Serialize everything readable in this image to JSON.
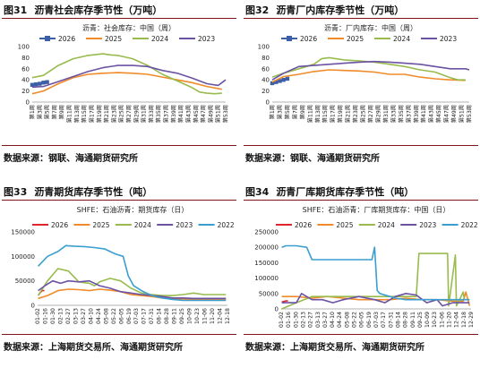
{
  "panels": [
    {
      "id": "p1",
      "figure_no": "图31",
      "title": "沥青社会库存季节性（万吨）",
      "source": "数据来源：钢联、海通期货研究所",
      "chart_data": {
        "type": "line",
        "subtitle": "沥青：社会库存：中国（周）",
        "xlabel": "",
        "ylabel": "",
        "ylim": [
          0,
          100
        ],
        "yticks": [
          0,
          20,
          40,
          60,
          80,
          100
        ],
        "ytick_labels": [
          "0",
          "20",
          "40",
          "60",
          "80",
          "100"
        ],
        "x_categories": [
          "第1周",
          "第5周",
          "第9周",
          "第13周",
          "第17周",
          "第21周",
          "第25周",
          "第29周",
          "第33周",
          "第37周",
          "第41周",
          "第45周",
          "第49周",
          "第53周"
        ],
        "x_tick_labels": [
          "第1周",
          "第3周",
          "第5周",
          "第7周",
          "第9周",
          "第11周",
          "第13周",
          "第15周",
          "第17周",
          "第19周",
          "第21周",
          "第23周",
          "第25周",
          "第27周",
          "第29周",
          "第31周",
          "第33周",
          "第35周",
          "第37周",
          "第39周",
          "第41周",
          "第43周",
          "第45周",
          "第47周",
          "第49周",
          "第51周",
          "第53周"
        ],
        "xlim": [
          1,
          53
        ],
        "legend_position": "top",
        "series": [
          {
            "name": "2026",
            "color": "#3d5fa6",
            "marker": true,
            "x": [
              1,
              2,
              3,
              4,
              5
            ],
            "y": [
              31,
              32,
              33,
              35,
              36
            ]
          },
          {
            "name": "2025",
            "color": "#f08b2a",
            "x": [
              1,
              4,
              8,
              12,
              16,
              20,
              24,
              28,
              32,
              36,
              40,
              44,
              48,
              52
            ],
            "y": [
              15,
              20,
              33,
              44,
              50,
              52,
              53,
              52,
              50,
              45,
              40,
              35,
              28,
              23
            ]
          },
          {
            "name": "2024",
            "color": "#99bb4e",
            "x": [
              1,
              4,
              8,
              12,
              16,
              20,
              22,
              24,
              28,
              32,
              36,
              40,
              44,
              46,
              48,
              50,
              52
            ],
            "y": [
              44,
              48,
              66,
              78,
              84,
              87,
              85,
              84,
              78,
              66,
              50,
              38,
              26,
              18,
              16,
              15,
              16
            ]
          },
          {
            "name": "2023",
            "color": "#6b52a3",
            "x": [
              1,
              4,
              8,
              12,
              16,
              20,
              24,
              28,
              32,
              36,
              40,
              44,
              48,
              51,
              53
            ],
            "y": [
              27,
              28,
              37,
              46,
              55,
              62,
              66,
              66,
              64,
              57,
              52,
              43,
              33,
              30,
              40
            ]
          }
        ]
      }
    },
    {
      "id": "p2",
      "figure_no": "图32",
      "title": "沥青厂内库存季节性（万吨）",
      "source": "数据来源：钢联、海通期货研究所",
      "chart_data": {
        "type": "line",
        "subtitle": "沥青：厂内库存：中国（周）",
        "xlabel": "",
        "ylabel": "",
        "ylim": [
          0,
          100
        ],
        "yticks": [
          0,
          20,
          40,
          60,
          80,
          100
        ],
        "ytick_labels": [
          "0",
          "20",
          "40",
          "60",
          "80",
          "100"
        ],
        "x_tick_labels": [
          "第1周",
          "第3周",
          "第5周",
          "第7周",
          "第9周",
          "第11周",
          "第13周",
          "第15周",
          "第17周",
          "第19周",
          "第21周",
          "第23周",
          "第25周",
          "第27周",
          "第29周",
          "第31周",
          "第33周",
          "第35周",
          "第37周",
          "第39周",
          "第41周",
          "第43周",
          "第45周",
          "第47周",
          "第49周",
          "第51周",
          "第53周"
        ],
        "xlim": [
          1,
          53
        ],
        "legend_position": "top",
        "series": [
          {
            "name": "2026",
            "color": "#3d5fa6",
            "marker": true,
            "x": [
              1,
              2,
              3,
              4,
              5
            ],
            "y": [
              34,
              36,
              38,
              40,
              42
            ]
          },
          {
            "name": "2025",
            "color": "#f08b2a",
            "x": [
              1,
              4,
              8,
              12,
              16,
              20,
              24,
              28,
              32,
              36,
              40,
              44,
              48,
              52
            ],
            "y": [
              36,
              46,
              50,
              55,
              58,
              57,
              56,
              54,
              50,
              50,
              45,
              42,
              40,
              39
            ]
          },
          {
            "name": "2024",
            "color": "#99bb4e",
            "x": [
              1,
              4,
              8,
              12,
              14,
              16,
              20,
              24,
              28,
              32,
              36,
              40,
              44,
              48,
              50,
              52
            ],
            "y": [
              45,
              52,
              60,
              68,
              78,
              80,
              76,
              74,
              72,
              68,
              64,
              58,
              54,
              44,
              40,
              40
            ]
          },
          {
            "name": "2023",
            "color": "#6b52a3",
            "x": [
              1,
              4,
              8,
              12,
              16,
              20,
              24,
              28,
              32,
              36,
              40,
              44,
              48,
              52,
              53
            ],
            "y": [
              40,
              52,
              64,
              66,
              68,
              70,
              72,
              73,
              72,
              70,
              68,
              64,
              60,
              60,
              58
            ]
          }
        ]
      }
    },
    {
      "id": "p3",
      "figure_no": "图33",
      "title": "沥青期货库存季节性（吨）",
      "source": "数据来源：上海期货交易所、海通期货研究所",
      "chart_data": {
        "type": "line",
        "subtitle": "SHFE：石油沥青：期货库存（日）",
        "xlabel": "",
        "ylabel": "",
        "ylim": [
          0,
          150000
        ],
        "yticks": [
          0,
          50000,
          100000,
          150000
        ],
        "ytick_labels": [
          "0",
          "50000",
          "100000",
          "150000"
        ],
        "x_tick_labels": [
          "01-02",
          "01-16",
          "01-30",
          "02-13",
          "02-27",
          "03-13",
          "03-27",
          "04-10",
          "04-24",
          "05-08",
          "05-22",
          "06-05",
          "06-19",
          "07-03",
          "07-17",
          "07-31",
          "08-14",
          "08-28",
          "09-11",
          "09-25",
          "10-09",
          "10-23",
          "11-06",
          "11-20",
          "12-04",
          "12-18"
        ],
        "xlim": [
          1,
          365
        ],
        "legend_position": "top",
        "series": [
          {
            "name": "2026",
            "color": "#e0262a",
            "x": [
              2,
              6,
              10,
              14
            ],
            "y": [
              20000,
              26000,
              30000,
              30000
            ]
          },
          {
            "name": "2025",
            "color": "#f08b2a",
            "x": [
              2,
              20,
              40,
              60,
              80,
              100,
              120,
              140,
              160,
              180,
              200,
              220,
              240,
              260,
              280,
              300,
              320,
              340,
              362
            ],
            "y": [
              14000,
              20000,
              30000,
              33000,
              32000,
              30000,
              33000,
              31000,
              28000,
              22000,
              20000,
              18000,
              15000,
              14000,
              13000,
              12000,
              12000,
              12000,
              12000
            ]
          },
          {
            "name": "2024",
            "color": "#99bb4e",
            "x": [
              2,
              20,
              40,
              60,
              80,
              100,
              110,
              120,
              140,
              160,
              180,
              200,
              220,
              240,
              260,
              280,
              300,
              320,
              340,
              362
            ],
            "y": [
              20000,
              50000,
              75000,
              70000,
              48000,
              45000,
              40000,
              48000,
              55000,
              50000,
              35000,
              25000,
              22000,
              20000,
              20000,
              22000,
              25000,
              22000,
              22000,
              22000
            ]
          },
          {
            "name": "2023",
            "color": "#6b52a3",
            "x": [
              2,
              15,
              30,
              45,
              60,
              80,
              100,
              120,
              140,
              160,
              180,
              200,
              220,
              240,
              260,
              280,
              300,
              320,
              340,
              362
            ],
            "y": [
              30000,
              40000,
              50000,
              45000,
              50000,
              48000,
              50000,
              40000,
              35000,
              28000,
              25000,
              22000,
              20000,
              18000,
              15000,
              15000,
              14000,
              14000,
              14000,
              14000
            ]
          },
          {
            "name": "2022",
            "color": "#3a9fd0",
            "x": [
              2,
              20,
              40,
              55,
              70,
              90,
              110,
              130,
              150,
              165,
              175,
              185,
              200,
              220,
              240,
              260,
              280,
              300,
              330,
              362
            ],
            "y": [
              80000,
              100000,
              110000,
              122000,
              121000,
              120000,
              118000,
              115000,
              105000,
              100000,
              60000,
              40000,
              30000,
              20000,
              15000,
              12000,
              10000,
              10000,
              10000,
              10000
            ]
          }
        ]
      }
    },
    {
      "id": "p4",
      "figure_no": "图34",
      "title": "沥青厂库期货库存季节性（吨）",
      "source": "数据来源：上海期货交易所、海通期货研究所",
      "chart_data": {
        "type": "line",
        "subtitle": "SHFE：石油沥青：厂库期货库存：中国（日）",
        "xlabel": "",
        "ylabel": "",
        "ylim": [
          0,
          250000
        ],
        "yticks": [
          0,
          50000,
          100000,
          150000,
          200000,
          250000
        ],
        "ytick_labels": [
          "0",
          "50000",
          "100000",
          "150000",
          "200000",
          "250000"
        ],
        "x_tick_labels": [
          "01-02",
          "01-16",
          "01-30",
          "02-13",
          "02-27",
          "03-13",
          "03-27",
          "04-10",
          "04-24",
          "05-08",
          "05-22",
          "06-05",
          "06-19",
          "07-03",
          "07-17",
          "07-31",
          "08-14",
          "08-28",
          "09-11",
          "09-25",
          "10-09",
          "10-23",
          "11-06",
          "11-20",
          "12-04",
          "12-18",
          "12-29"
        ],
        "xlim": [
          1,
          365
        ],
        "legend_position": "top",
        "series": [
          {
            "name": "2026",
            "color": "#e0262a",
            "x": [
              2,
              6,
              10,
              14
            ],
            "y": [
              22000,
              24000,
              26000,
              26000
            ]
          },
          {
            "name": "2025",
            "color": "#f08b2a",
            "x": [
              2,
              30,
              60,
              90,
              120,
              150,
              180,
              210,
              240,
              270,
              300,
              330,
              350,
              355,
              362
            ],
            "y": [
              40000,
              40000,
              35000,
              40000,
              35000,
              30000,
              30000,
              30000,
              35000,
              30000,
              30000,
              25000,
              25000,
              55000,
              10000
            ]
          },
          {
            "name": "2024",
            "color": "#99bb4e",
            "x": [
              2,
              30,
              60,
              90,
              120,
              150,
              180,
              205,
              210,
              240,
              260,
              265,
              300,
              320,
              322,
              335,
              337,
              350,
              352,
              362
            ],
            "y": [
              0,
              20000,
              40000,
              40000,
              40000,
              40000,
              40000,
              40000,
              40000,
              40000,
              40000,
              180000,
              180000,
              180000,
              10000,
              175000,
              10000,
              55000,
              30000,
              30000
            ]
          },
          {
            "name": "2023",
            "color": "#6b52a3",
            "x": [
              2,
              30,
              40,
              60,
              80,
              100,
              120,
              150,
              180,
              200,
              220,
              240,
              260,
              280,
              300,
              310,
              330,
              362
            ],
            "y": [
              20000,
              20000,
              50000,
              30000,
              30000,
              20000,
              30000,
              40000,
              30000,
              20000,
              40000,
              50000,
              45000,
              20000,
              30000,
              10000,
              20000,
              20000
            ]
          },
          {
            "name": "2022",
            "color": "#3a9fd0",
            "x": [
              2,
              10,
              30,
              50,
              60,
              65,
              70,
              90,
              110,
              150,
              175,
              180,
              185,
              190,
              200,
              220,
              240,
              260,
              280,
              300,
              320,
              340,
              362
            ],
            "y": [
              200000,
              205000,
              205000,
              200000,
              160000,
              160000,
              160000,
              160000,
              160000,
              160000,
              160000,
              200000,
              60000,
              50000,
              45000,
              35000,
              30000,
              30000,
              30000,
              30000,
              30000,
              30000,
              30000
            ]
          }
        ]
      }
    }
  ]
}
